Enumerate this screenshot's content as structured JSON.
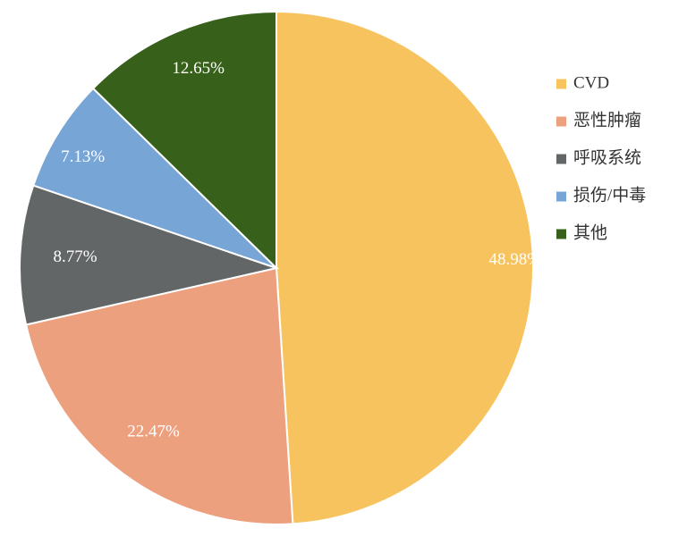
{
  "chart_data": {
    "type": "pie",
    "categories": [
      "CVD",
      "恶性肿瘤",
      "呼吸系统",
      "损伤/中毒",
      "其他"
    ],
    "values": [
      48.98,
      22.47,
      8.77,
      7.13,
      12.65
    ],
    "value_labels": [
      "48.98%",
      "22.47%",
      "8.77%",
      "7.13%",
      "12.65%"
    ],
    "colors": [
      "#F7C35E",
      "#EDA07E",
      "#636667",
      "#76A5D6",
      "#37601A"
    ],
    "start": "12 o'clock",
    "direction": "clockwise",
    "legend_position": "right",
    "title": ""
  }
}
